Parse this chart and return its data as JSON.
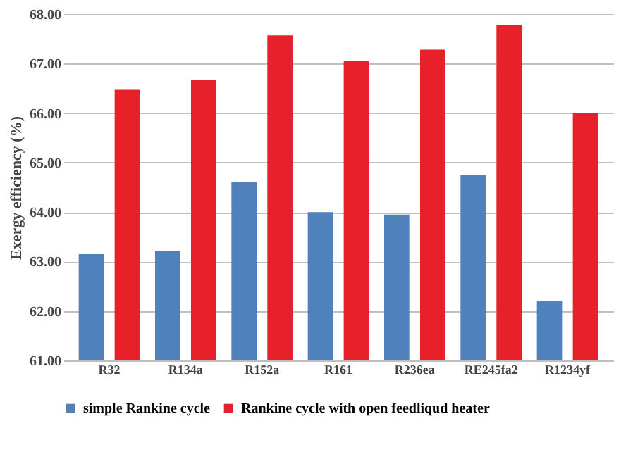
{
  "chart_data": {
    "type": "bar",
    "ylabel": "Exergy efficiency (%)",
    "categories": [
      "R32",
      "R134a",
      "R152a",
      "R161",
      "R236ea",
      "RE245fa2",
      "R1234yf"
    ],
    "series": [
      {
        "name": "simple Rankine cycle",
        "color": "#4f81bd",
        "values": [
          63.15,
          63.22,
          64.6,
          64.0,
          63.95,
          64.75,
          62.2
        ]
      },
      {
        "name": "Rankine cycle with open feedliqud heater",
        "color": "#e8202a",
        "values": [
          66.47,
          66.67,
          67.57,
          67.05,
          67.28,
          67.78,
          66.0
        ]
      }
    ],
    "ylim": [
      61,
      68
    ],
    "yticks": [
      {
        "value": 61,
        "label": "61.00"
      },
      {
        "value": 62,
        "label": "62.00"
      },
      {
        "value": 63,
        "label": "63.00"
      },
      {
        "value": 64,
        "label": "64.00"
      },
      {
        "value": 65,
        "label": "65.00"
      },
      {
        "value": 66,
        "label": "66.00"
      },
      {
        "value": 67,
        "label": "67.00"
      },
      {
        "value": 68,
        "label": "68.00"
      }
    ],
    "grid": "y",
    "legend": "bottom"
  }
}
